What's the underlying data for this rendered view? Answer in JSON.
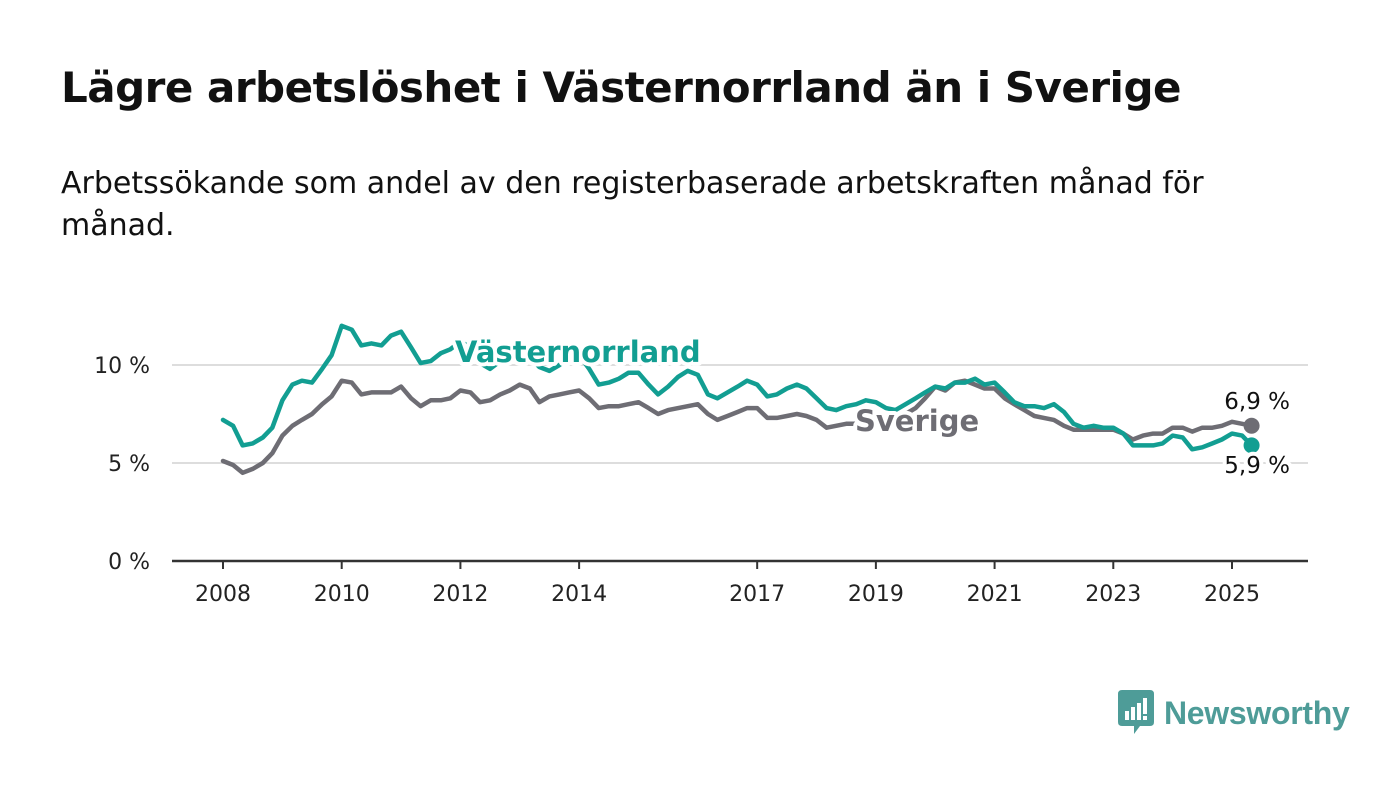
{
  "title": "Lägre arbetslöshet i Västernorrland än i Sverige",
  "subtitle": "Arbetssökande som andel av den registerbaserade arbetskraften månad för månad.",
  "brand": {
    "name": "Newsworthy",
    "color": "#4e9c98"
  },
  "colors": {
    "vasternorrland": "#129e92",
    "sverige": "#6e6d74",
    "grid": "#dddddd",
    "axis": "#333333",
    "text": "#111111"
  },
  "chart_data": {
    "type": "line",
    "title": "Lägre arbetslöshet i Västernorrland än i Sverige",
    "subtitle": "Arbetssökande som andel av den registerbaserade arbetskraften månad för månad.",
    "xlabel": "",
    "ylabel": "",
    "unit": "%",
    "ylim": [
      0,
      13
    ],
    "xlim": [
      2007.95,
      2025.55
    ],
    "y_ticks": [
      {
        "value": 0,
        "label": "0 %"
      },
      {
        "value": 5,
        "label": "5 %"
      },
      {
        "value": 10,
        "label": "10 %"
      }
    ],
    "x_ticks": [
      {
        "value": 2008,
        "label": "2008"
      },
      {
        "value": 2010,
        "label": "2010"
      },
      {
        "value": 2012,
        "label": "2012"
      },
      {
        "value": 2014,
        "label": "2014"
      },
      {
        "value": 2017,
        "label": "2017"
      },
      {
        "value": 2019,
        "label": "2019"
      },
      {
        "value": 2021,
        "label": "2021"
      },
      {
        "value": 2023,
        "label": "2023"
      },
      {
        "value": 2025,
        "label": "2025"
      }
    ],
    "grid": true,
    "legend": "inline labels on the lines",
    "series": [
      {
        "name": "Västernorrland",
        "color": "#129e92",
        "points": [
          [
            2008.0,
            7.2
          ],
          [
            2008.17,
            6.9
          ],
          [
            2008.33,
            5.9
          ],
          [
            2008.5,
            6.0
          ],
          [
            2008.67,
            6.3
          ],
          [
            2008.83,
            6.8
          ],
          [
            2009.0,
            8.2
          ],
          [
            2009.17,
            9.0
          ],
          [
            2009.33,
            9.2
          ],
          [
            2009.5,
            9.1
          ],
          [
            2009.67,
            9.8
          ],
          [
            2009.83,
            10.5
          ],
          [
            2010.0,
            12.0
          ],
          [
            2010.17,
            11.8
          ],
          [
            2010.33,
            11.0
          ],
          [
            2010.5,
            11.1
          ],
          [
            2010.67,
            11.0
          ],
          [
            2010.83,
            11.5
          ],
          [
            2011.0,
            11.7
          ],
          [
            2011.17,
            10.9
          ],
          [
            2011.33,
            10.1
          ],
          [
            2011.5,
            10.2
          ],
          [
            2011.67,
            10.6
          ],
          [
            2011.83,
            10.8
          ],
          [
            2012.0,
            11.2
          ],
          [
            2012.17,
            10.9
          ],
          [
            2012.33,
            10.1
          ],
          [
            2012.5,
            9.8
          ],
          [
            2012.67,
            10.2
          ],
          [
            2012.83,
            10.5
          ],
          [
            2013.0,
            10.3
          ],
          [
            2013.17,
            10.4
          ],
          [
            2013.33,
            9.9
          ],
          [
            2013.5,
            9.7
          ],
          [
            2013.67,
            10.0
          ],
          [
            2013.83,
            10.4
          ],
          [
            2014.0,
            10.5
          ],
          [
            2014.17,
            9.8
          ],
          [
            2014.33,
            9.0
          ],
          [
            2014.5,
            9.1
          ],
          [
            2014.67,
            9.3
          ],
          [
            2014.83,
            9.6
          ],
          [
            2015.0,
            9.6
          ],
          [
            2015.17,
            9.0
          ],
          [
            2015.33,
            8.5
          ],
          [
            2015.5,
            8.9
          ],
          [
            2015.67,
            9.4
          ],
          [
            2015.83,
            9.7
          ],
          [
            2016.0,
            9.5
          ],
          [
            2016.17,
            8.5
          ],
          [
            2016.33,
            8.3
          ],
          [
            2016.5,
            8.6
          ],
          [
            2016.67,
            8.9
          ],
          [
            2016.83,
            9.2
          ],
          [
            2017.0,
            9.0
          ],
          [
            2017.17,
            8.4
          ],
          [
            2017.33,
            8.5
          ],
          [
            2017.5,
            8.8
          ],
          [
            2017.67,
            9.0
          ],
          [
            2017.83,
            8.8
          ],
          [
            2018.0,
            8.3
          ],
          [
            2018.17,
            7.8
          ],
          [
            2018.33,
            7.7
          ],
          [
            2018.5,
            7.9
          ],
          [
            2018.67,
            8.0
          ],
          [
            2018.83,
            8.2
          ],
          [
            2019.0,
            8.1
          ],
          [
            2019.17,
            7.8
          ],
          [
            2019.33,
            7.7
          ],
          [
            2019.5,
            8.0
          ],
          [
            2019.67,
            8.3
          ],
          [
            2019.83,
            8.6
          ],
          [
            2020.0,
            8.9
          ],
          [
            2020.17,
            8.8
          ],
          [
            2020.33,
            9.1
          ],
          [
            2020.5,
            9.1
          ],
          [
            2020.67,
            9.3
          ],
          [
            2020.83,
            9.0
          ],
          [
            2021.0,
            9.1
          ],
          [
            2021.17,
            8.6
          ],
          [
            2021.33,
            8.1
          ],
          [
            2021.5,
            7.9
          ],
          [
            2021.67,
            7.9
          ],
          [
            2021.83,
            7.8
          ],
          [
            2022.0,
            8.0
          ],
          [
            2022.17,
            7.6
          ],
          [
            2022.33,
            7.0
          ],
          [
            2022.5,
            6.8
          ],
          [
            2022.67,
            6.9
          ],
          [
            2022.83,
            6.8
          ],
          [
            2023.0,
            6.8
          ],
          [
            2023.17,
            6.5
          ],
          [
            2023.33,
            5.9
          ],
          [
            2023.5,
            5.9
          ],
          [
            2023.67,
            5.9
          ],
          [
            2023.83,
            6.0
          ],
          [
            2024.0,
            6.4
          ],
          [
            2024.17,
            6.3
          ],
          [
            2024.33,
            5.7
          ],
          [
            2024.5,
            5.8
          ],
          [
            2024.67,
            6.0
          ],
          [
            2024.83,
            6.2
          ],
          [
            2025.0,
            6.5
          ],
          [
            2025.17,
            6.4
          ],
          [
            2025.33,
            5.9
          ]
        ],
        "last_label": "5,9 %"
      },
      {
        "name": "Sverige",
        "color": "#6e6d74",
        "points": [
          [
            2008.0,
            5.1
          ],
          [
            2008.17,
            4.9
          ],
          [
            2008.33,
            4.5
          ],
          [
            2008.5,
            4.7
          ],
          [
            2008.67,
            5.0
          ],
          [
            2008.83,
            5.5
          ],
          [
            2009.0,
            6.4
          ],
          [
            2009.17,
            6.9
          ],
          [
            2009.33,
            7.2
          ],
          [
            2009.5,
            7.5
          ],
          [
            2009.67,
            8.0
          ],
          [
            2009.83,
            8.4
          ],
          [
            2010.0,
            9.2
          ],
          [
            2010.17,
            9.1
          ],
          [
            2010.33,
            8.5
          ],
          [
            2010.5,
            8.6
          ],
          [
            2010.67,
            8.6
          ],
          [
            2010.83,
            8.6
          ],
          [
            2011.0,
            8.9
          ],
          [
            2011.17,
            8.3
          ],
          [
            2011.33,
            7.9
          ],
          [
            2011.5,
            8.2
          ],
          [
            2011.67,
            8.2
          ],
          [
            2011.83,
            8.3
          ],
          [
            2012.0,
            8.7
          ],
          [
            2012.17,
            8.6
          ],
          [
            2012.33,
            8.1
          ],
          [
            2012.5,
            8.2
          ],
          [
            2012.67,
            8.5
          ],
          [
            2012.83,
            8.7
          ],
          [
            2013.0,
            9.0
          ],
          [
            2013.17,
            8.8
          ],
          [
            2013.33,
            8.1
          ],
          [
            2013.5,
            8.4
          ],
          [
            2013.67,
            8.5
          ],
          [
            2013.83,
            8.6
          ],
          [
            2014.0,
            8.7
          ],
          [
            2014.17,
            8.3
          ],
          [
            2014.33,
            7.8
          ],
          [
            2014.5,
            7.9
          ],
          [
            2014.67,
            7.9
          ],
          [
            2014.83,
            8.0
          ],
          [
            2015.0,
            8.1
          ],
          [
            2015.17,
            7.8
          ],
          [
            2015.33,
            7.5
          ],
          [
            2015.5,
            7.7
          ],
          [
            2015.67,
            7.8
          ],
          [
            2015.83,
            7.9
          ],
          [
            2016.0,
            8.0
          ],
          [
            2016.17,
            7.5
          ],
          [
            2016.33,
            7.2
          ],
          [
            2016.5,
            7.4
          ],
          [
            2016.67,
            7.6
          ],
          [
            2016.83,
            7.8
          ],
          [
            2017.0,
            7.8
          ],
          [
            2017.17,
            7.3
          ],
          [
            2017.33,
            7.3
          ],
          [
            2017.5,
            7.4
          ],
          [
            2017.67,
            7.5
          ],
          [
            2017.83,
            7.4
          ],
          [
            2018.0,
            7.2
          ],
          [
            2018.17,
            6.8
          ],
          [
            2018.33,
            6.9
          ],
          [
            2018.5,
            7.0
          ],
          [
            2018.67,
            7.0
          ],
          [
            2018.83,
            7.1
          ],
          [
            2019.0,
            7.1
          ],
          [
            2019.17,
            7.1
          ],
          [
            2019.33,
            7.3
          ],
          [
            2019.5,
            7.5
          ],
          [
            2019.67,
            7.8
          ],
          [
            2019.83,
            8.3
          ],
          [
            2020.0,
            8.9
          ],
          [
            2020.17,
            8.7
          ],
          [
            2020.33,
            9.1
          ],
          [
            2020.5,
            9.2
          ],
          [
            2020.67,
            9.0
          ],
          [
            2020.83,
            8.8
          ],
          [
            2021.0,
            8.8
          ],
          [
            2021.17,
            8.3
          ],
          [
            2021.33,
            8.0
          ],
          [
            2021.5,
            7.7
          ],
          [
            2021.67,
            7.4
          ],
          [
            2021.83,
            7.3
          ],
          [
            2022.0,
            7.2
          ],
          [
            2022.17,
            6.9
          ],
          [
            2022.33,
            6.7
          ],
          [
            2022.5,
            6.7
          ],
          [
            2022.67,
            6.7
          ],
          [
            2022.83,
            6.7
          ],
          [
            2023.0,
            6.7
          ],
          [
            2023.17,
            6.5
          ],
          [
            2023.33,
            6.2
          ],
          [
            2023.5,
            6.4
          ],
          [
            2023.67,
            6.5
          ],
          [
            2023.83,
            6.5
          ],
          [
            2024.0,
            6.8
          ],
          [
            2024.17,
            6.8
          ],
          [
            2024.33,
            6.6
          ],
          [
            2024.5,
            6.8
          ],
          [
            2024.67,
            6.8
          ],
          [
            2024.83,
            6.9
          ],
          [
            2025.0,
            7.1
          ],
          [
            2025.17,
            7.0
          ],
          [
            2025.33,
            6.9
          ]
        ],
        "last_label": "6,9 %"
      }
    ]
  }
}
